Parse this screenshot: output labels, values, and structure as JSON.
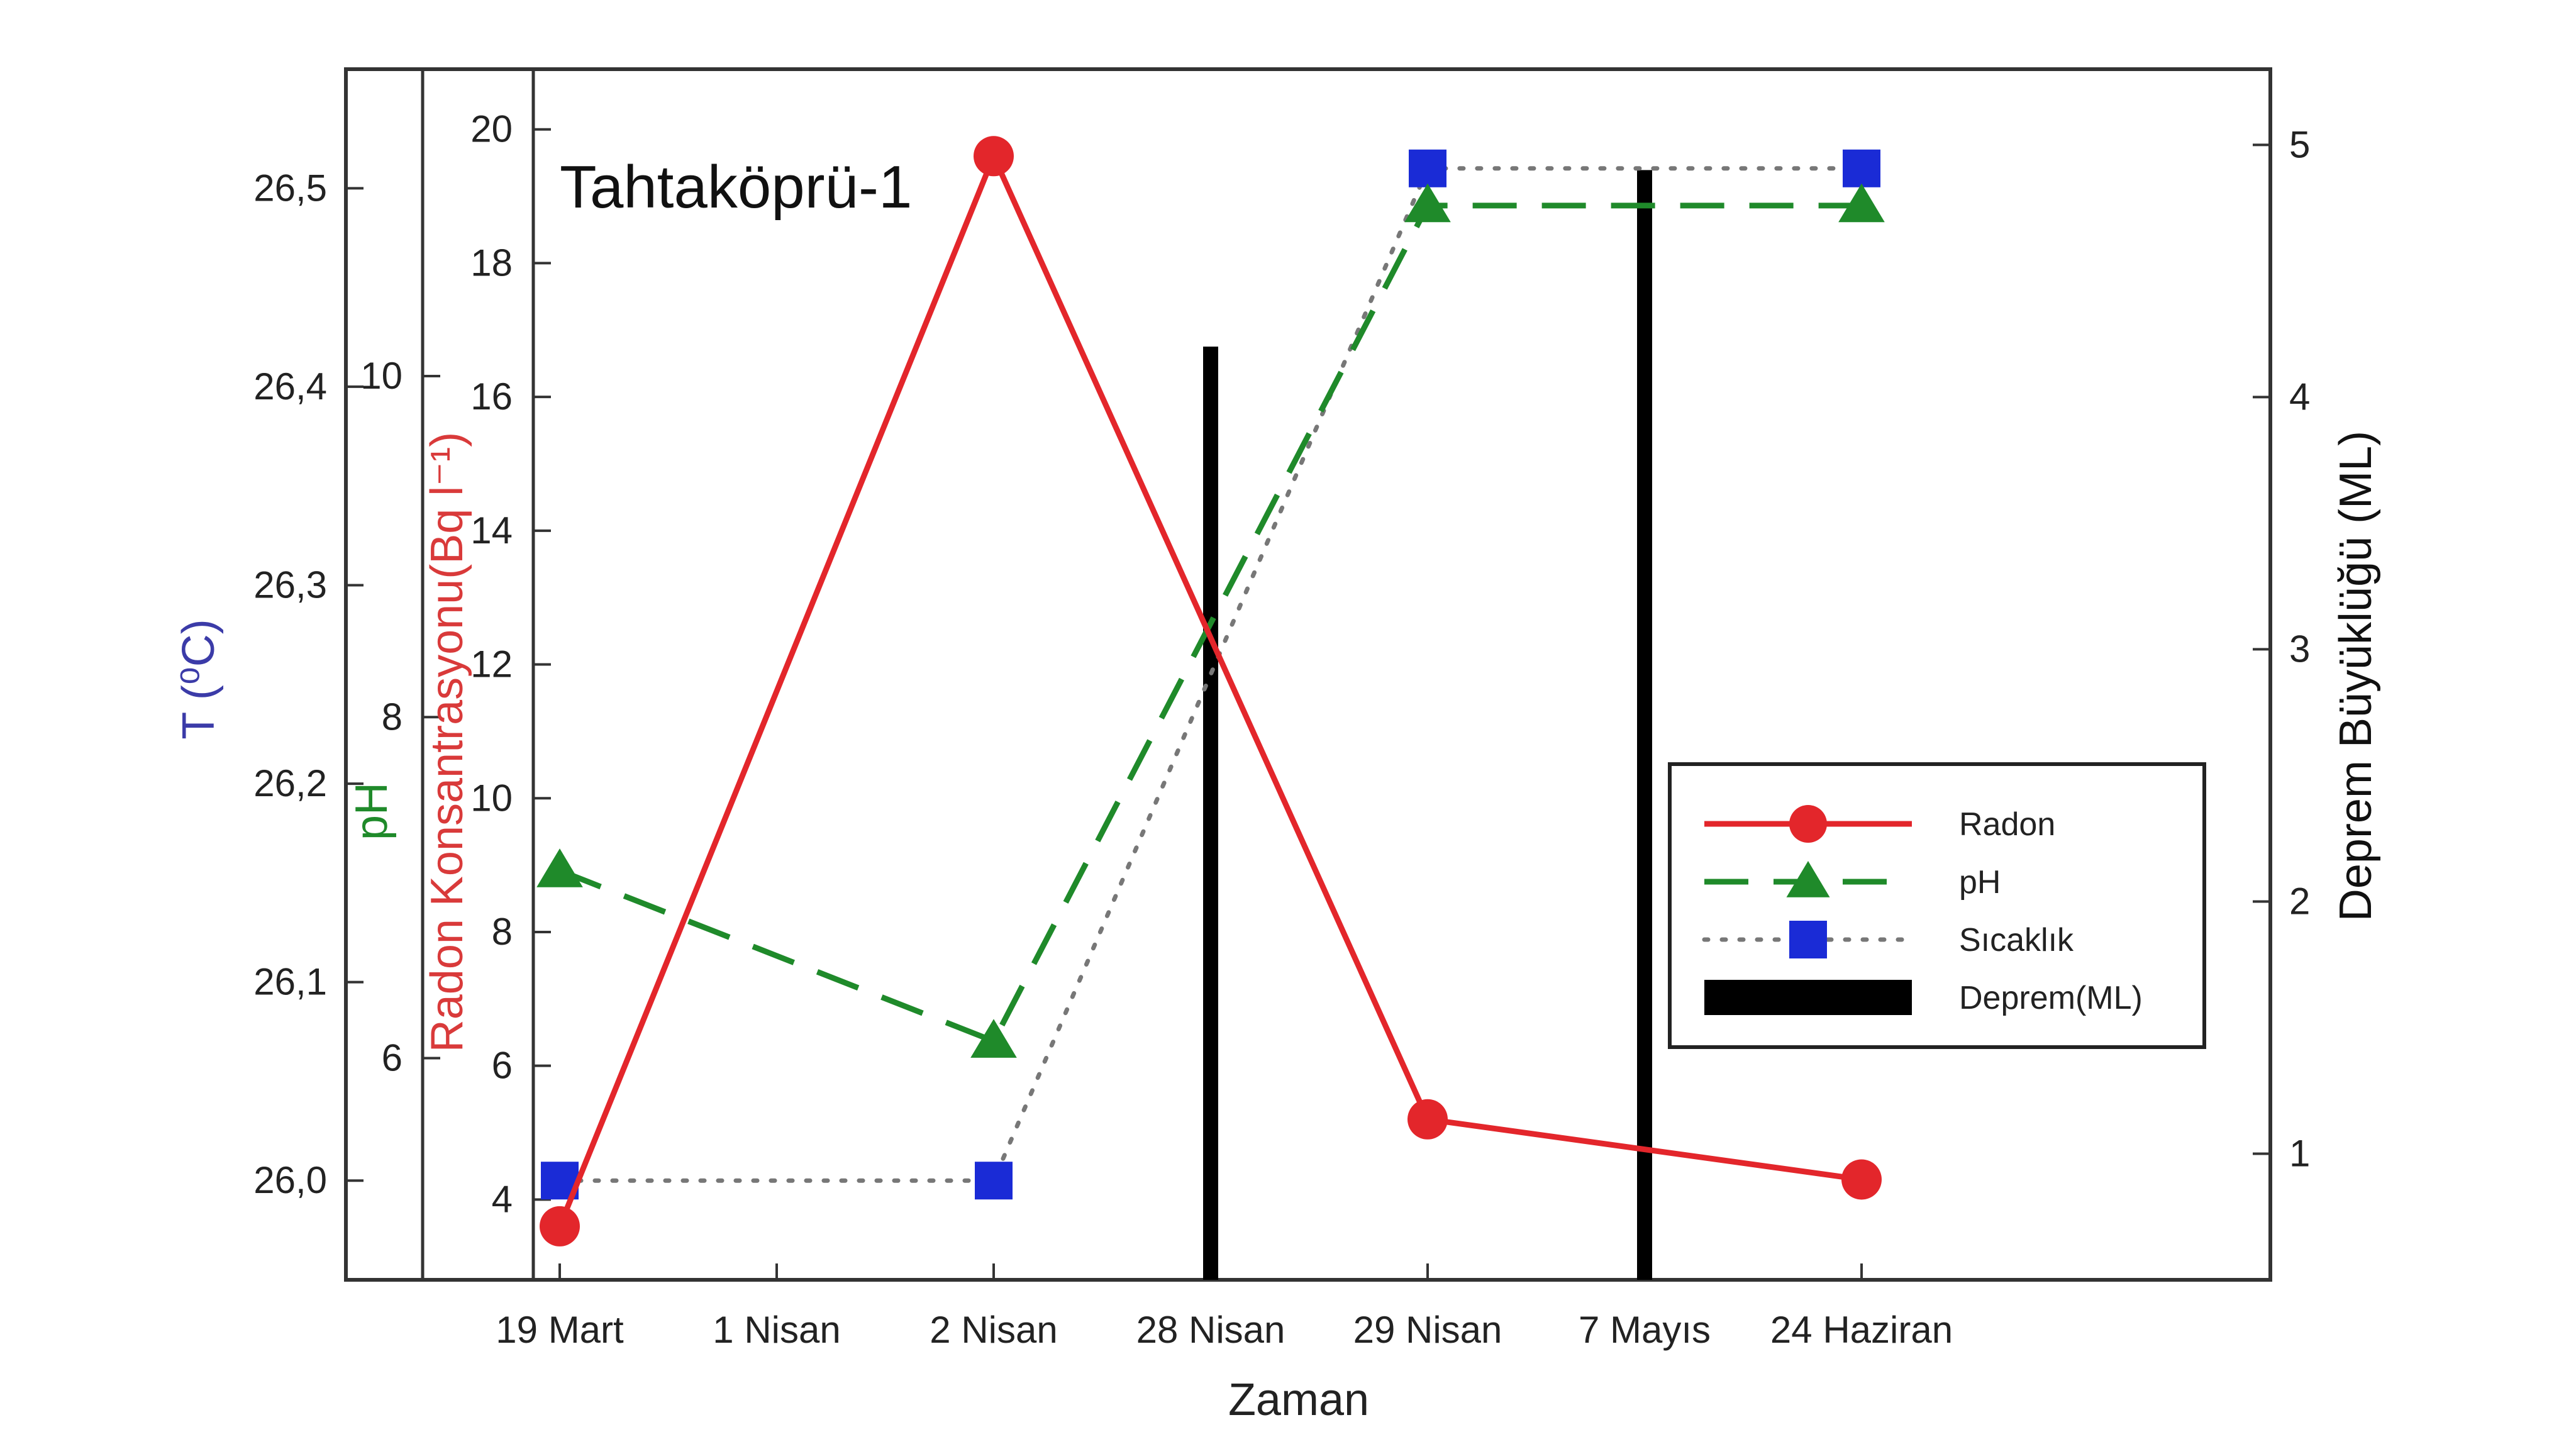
{
  "chart_data": {
    "type": "line",
    "title": "Tahtaköprü-1",
    "xlabel": "Zaman",
    "categories": [
      "19 Mart",
      "1 Nisan",
      "2 Nisan",
      "28 Nisan",
      "29 Nisan",
      "7 Mayıs",
      "24 Haziran"
    ],
    "axes": {
      "temperature": {
        "label": "T (⁰C)",
        "color": "#3b3ba8",
        "min": 25.95,
        "max": 26.56,
        "ticks": [
          "26,0",
          "26,1",
          "26,2",
          "26,3",
          "26,4",
          "26,5"
        ],
        "tick_values": [
          26.0,
          26.1,
          26.2,
          26.3,
          26.4,
          26.5
        ]
      },
      "ph": {
        "label": "pH",
        "color": "#1f8a2a",
        "min": 4.7,
        "max": 11.8,
        "ticks": [
          "6",
          "8",
          "10"
        ],
        "tick_values": [
          6,
          8,
          10
        ]
      },
      "radon": {
        "label": "Radon Konsantrasyonu(Bq l⁻¹)",
        "color": "#d93a3a",
        "min": 2.8,
        "max": 20.9,
        "ticks": [
          "4",
          "6",
          "8",
          "10",
          "12",
          "14",
          "16",
          "18",
          "20"
        ],
        "tick_values": [
          4,
          6,
          8,
          10,
          12,
          14,
          16,
          18,
          20
        ]
      },
      "magnitude": {
        "label": "Deprem Büyüklüğü (ML)",
        "color": "#111111",
        "min": 0.5,
        "max": 5.3,
        "ticks": [
          "1",
          "2",
          "3",
          "4",
          "5"
        ],
        "tick_values": [
          1,
          2,
          3,
          4,
          5
        ]
      }
    },
    "series": [
      {
        "name": "Radon",
        "axis": "radon",
        "color": "#e3262b",
        "marker": "circle",
        "dash": "solid",
        "points": [
          [
            "19 Mart",
            3.6
          ],
          [
            "2 Nisan",
            19.6
          ],
          [
            "29 Nisan",
            5.2
          ],
          [
            "24 Haziran",
            4.3
          ]
        ]
      },
      {
        "name": "pH",
        "axis": "ph",
        "color": "#1f8a2a",
        "marker": "triangle",
        "dash": "dashed",
        "points": [
          [
            "19 Mart",
            7.1
          ],
          [
            "2 Nisan",
            6.1
          ],
          [
            "29 Nisan",
            11.0
          ],
          [
            "24 Haziran",
            11.0
          ]
        ]
      },
      {
        "name": "Sıcaklık",
        "axis": "temperature",
        "color": "#1a2bd6",
        "marker": "square",
        "dash": "dotted",
        "line_color": "#777777",
        "points": [
          [
            "19 Mart",
            26.0
          ],
          [
            "2 Nisan",
            26.0
          ],
          [
            "29 Nisan",
            26.51
          ],
          [
            "24 Haziran",
            26.51
          ]
        ]
      },
      {
        "name": "Deprem(ML)",
        "axis": "magnitude",
        "color": "#000000",
        "marker": "bar",
        "points": [
          [
            "28 Nisan",
            4.2
          ],
          [
            "7 Mayıs",
            4.9
          ]
        ]
      }
    ],
    "legend": {
      "placement": "right-middle",
      "items": [
        "Radon",
        "pH",
        "Sıcaklık",
        "Deprem(ML)"
      ]
    }
  }
}
